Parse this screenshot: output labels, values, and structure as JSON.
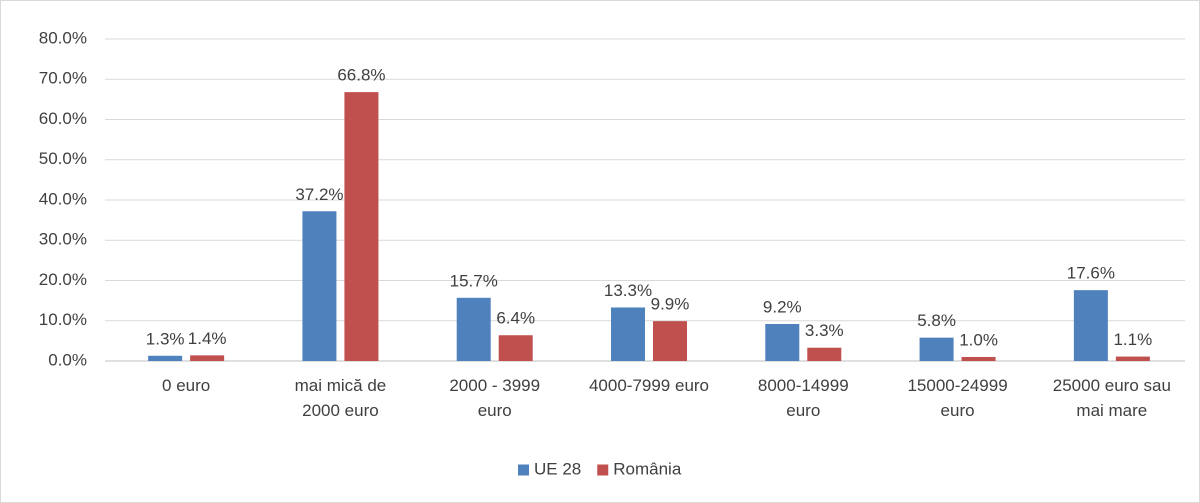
{
  "chart_data": {
    "type": "bar",
    "categories": [
      "0 euro",
      "mai mică de 2000 euro",
      "2000 - 3999 euro",
      "4000-7999 euro",
      "8000-14999 euro",
      "15000-24999 euro",
      "25000 euro sau mai mare"
    ],
    "series": [
      {
        "name": "UE 28",
        "color": "#4f81bd",
        "values": [
          1.3,
          37.2,
          15.7,
          13.3,
          9.2,
          5.8,
          17.6
        ],
        "value_labels": [
          "1.3%",
          "37.2%",
          "15.7%",
          "13.3%",
          "9.2%",
          "5.8%",
          "17.6%"
        ]
      },
      {
        "name": "România",
        "color": "#c0504d",
        "values": [
          1.4,
          66.8,
          6.4,
          9.9,
          3.3,
          1.0,
          1.1
        ],
        "value_labels": [
          "1.4%",
          "66.8%",
          "6.4%",
          "9.9%",
          "3.3%",
          "1.0%",
          "1.1%"
        ]
      }
    ],
    "ylim": [
      0,
      80
    ],
    "yticks": [
      {
        "value": 0,
        "label": "0.0%"
      },
      {
        "value": 10,
        "label": "10.0%"
      },
      {
        "value": 20,
        "label": "20.0%"
      },
      {
        "value": 30,
        "label": "30.0%"
      },
      {
        "value": 40,
        "label": "40.0%"
      },
      {
        "value": 50,
        "label": "50.0%"
      },
      {
        "value": 60,
        "label": "60.0%"
      },
      {
        "value": 70,
        "label": "70.0%"
      },
      {
        "value": 80,
        "label": "80.0%"
      }
    ],
    "grid": true,
    "legend": "bottom"
  }
}
